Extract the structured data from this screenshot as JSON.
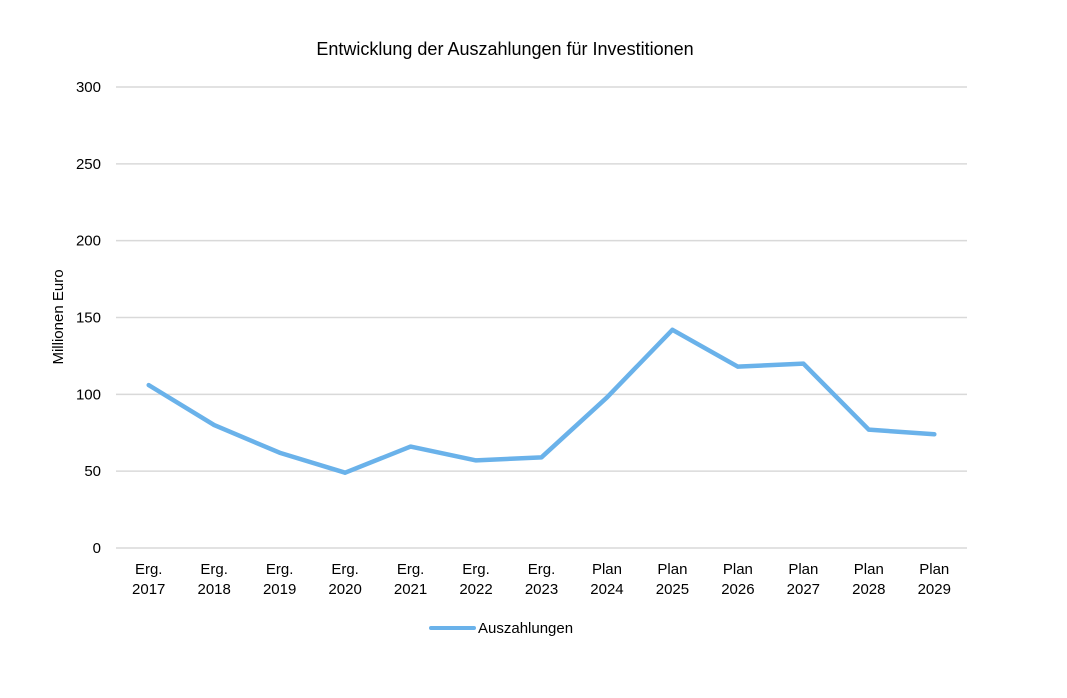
{
  "chart_data": {
    "type": "line",
    "title": "Entwicklung der Auszahlungen für Investitionen",
    "xlabel": "",
    "ylabel": "Millionen Euro",
    "ylim": [
      0,
      300
    ],
    "yticks": [
      0,
      50,
      100,
      150,
      200,
      250,
      300
    ],
    "grid": true,
    "legend_position": "bottom",
    "categories": [
      [
        "Erg.",
        "2017"
      ],
      [
        "Erg.",
        "2018"
      ],
      [
        "Erg.",
        "2019"
      ],
      [
        "Erg.",
        "2020"
      ],
      [
        "Erg.",
        "2021"
      ],
      [
        "Erg.",
        "2022"
      ],
      [
        "Erg.",
        "2023"
      ],
      [
        "Plan",
        "2024"
      ],
      [
        "Plan",
        "2025"
      ],
      [
        "Plan",
        "2026"
      ],
      [
        "Plan",
        "2027"
      ],
      [
        "Plan",
        "2028"
      ],
      [
        "Plan",
        "2029"
      ]
    ],
    "series": [
      {
        "name": "Auszahlungen",
        "color": "#6AB2EA",
        "values": [
          106,
          80,
          62,
          49,
          66,
          57,
          59,
          98,
          142,
          118,
          120,
          77,
          74
        ]
      }
    ]
  }
}
